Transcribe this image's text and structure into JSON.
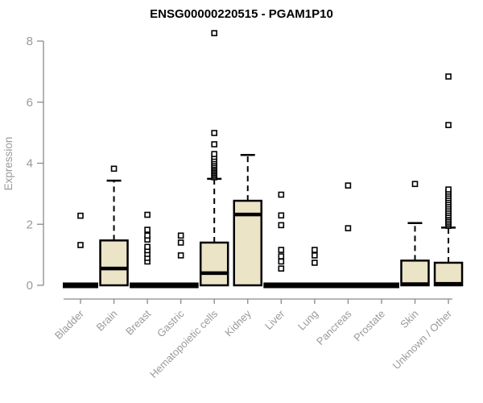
{
  "title": "ENSG00000220515 - PGAM1P10",
  "chart_data": {
    "type": "box",
    "title": "ENSG00000220515 - PGAM1P10",
    "xlabel": "",
    "ylabel": "Expression",
    "ylim": [
      0,
      8
    ],
    "yticks": [
      0,
      2,
      4,
      6,
      8
    ],
    "grid": false,
    "legend": false,
    "categories": [
      "Bladder",
      "Brain",
      "Breast",
      "Gastric",
      "Hematopoietic cells",
      "Kidney",
      "Liver",
      "Lung",
      "Pancreas",
      "Prostate",
      "Skin",
      "Unknown / Other"
    ],
    "boxes": [
      {
        "category": "Bladder",
        "q1": 0,
        "median": 0,
        "q3": 0,
        "whisker_low": 0,
        "whisker_high": 0,
        "flat": true,
        "outliers": [
          1.32,
          2.28
        ]
      },
      {
        "category": "Brain",
        "q1": 0,
        "median": 0.55,
        "q3": 1.47,
        "whisker_low": 0,
        "whisker_high": 3.43,
        "flat": false,
        "outliers": [
          3.82
        ]
      },
      {
        "category": "Breast",
        "q1": 0,
        "median": 0,
        "q3": 0,
        "whisker_low": 0,
        "whisker_high": 0,
        "flat": true,
        "outliers": [
          0.78,
          0.9,
          1.03,
          1.15,
          1.26,
          1.5,
          1.63,
          1.82,
          2.31
        ]
      },
      {
        "category": "Gastric",
        "q1": 0,
        "median": 0,
        "q3": 0,
        "whisker_low": 0,
        "whisker_high": 0,
        "flat": true,
        "outliers": [
          0.98,
          1.4,
          1.63
        ]
      },
      {
        "category": "Hematopoietic cells",
        "q1": 0,
        "median": 0.4,
        "q3": 1.4,
        "whisker_low": 0,
        "whisker_high": 3.49,
        "flat": false,
        "outliers": [
          3.54,
          3.59,
          3.64,
          3.69,
          3.74,
          3.79,
          3.84,
          3.89,
          3.94,
          4.0,
          4.06,
          4.13,
          4.21,
          4.3,
          4.62,
          4.99,
          8.26
        ]
      },
      {
        "category": "Kidney",
        "q1": 0,
        "median": 2.32,
        "q3": 2.77,
        "whisker_low": 0,
        "whisker_high": 4.27,
        "flat": false,
        "outliers": []
      },
      {
        "category": "Liver",
        "q1": 0,
        "median": 0,
        "q3": 0,
        "whisker_low": 0,
        "whisker_high": 0,
        "flat": true,
        "outliers": [
          0.55,
          0.78,
          0.95,
          1.16,
          1.97,
          2.29,
          2.97
        ]
      },
      {
        "category": "Lung",
        "q1": 0,
        "median": 0,
        "q3": 0,
        "whisker_low": 0,
        "whisker_high": 0,
        "flat": true,
        "outliers": [
          0.74,
          0.98,
          1.16
        ]
      },
      {
        "category": "Pancreas",
        "q1": 0,
        "median": 0,
        "q3": 0,
        "whisker_low": 0,
        "whisker_high": 0,
        "flat": true,
        "outliers": [
          1.87,
          3.27
        ]
      },
      {
        "category": "Prostate",
        "q1": 0,
        "median": 0,
        "q3": 0,
        "whisker_low": 0,
        "whisker_high": 0,
        "flat": true,
        "outliers": []
      },
      {
        "category": "Skin",
        "q1": 0,
        "median": 0.04,
        "q3": 0.81,
        "whisker_low": 0,
        "whisker_high": 2.04,
        "flat": false,
        "outliers": [
          3.32
        ]
      },
      {
        "category": "Unknown / Other",
        "q1": 0,
        "median": 0.05,
        "q3": 0.74,
        "whisker_low": 0,
        "whisker_high": 1.89,
        "flat": false,
        "outliers": [
          1.95,
          2.0,
          2.06,
          2.12,
          2.18,
          2.24,
          2.3,
          2.37,
          2.44,
          2.51,
          2.58,
          2.65,
          2.72,
          2.79,
          2.86,
          2.93,
          3.0,
          3.07,
          3.14,
          5.25,
          6.84
        ]
      }
    ],
    "colors": {
      "box_fill": "#ece4c6",
      "box_stroke": "#000000",
      "median": "#000000",
      "whisker": "#000000",
      "outlier_fill": "#ffffff",
      "outlier_stroke": "#000000",
      "axis": "#8a8a8a",
      "tick_label": "#9a9a9a",
      "title": "#000000"
    }
  }
}
